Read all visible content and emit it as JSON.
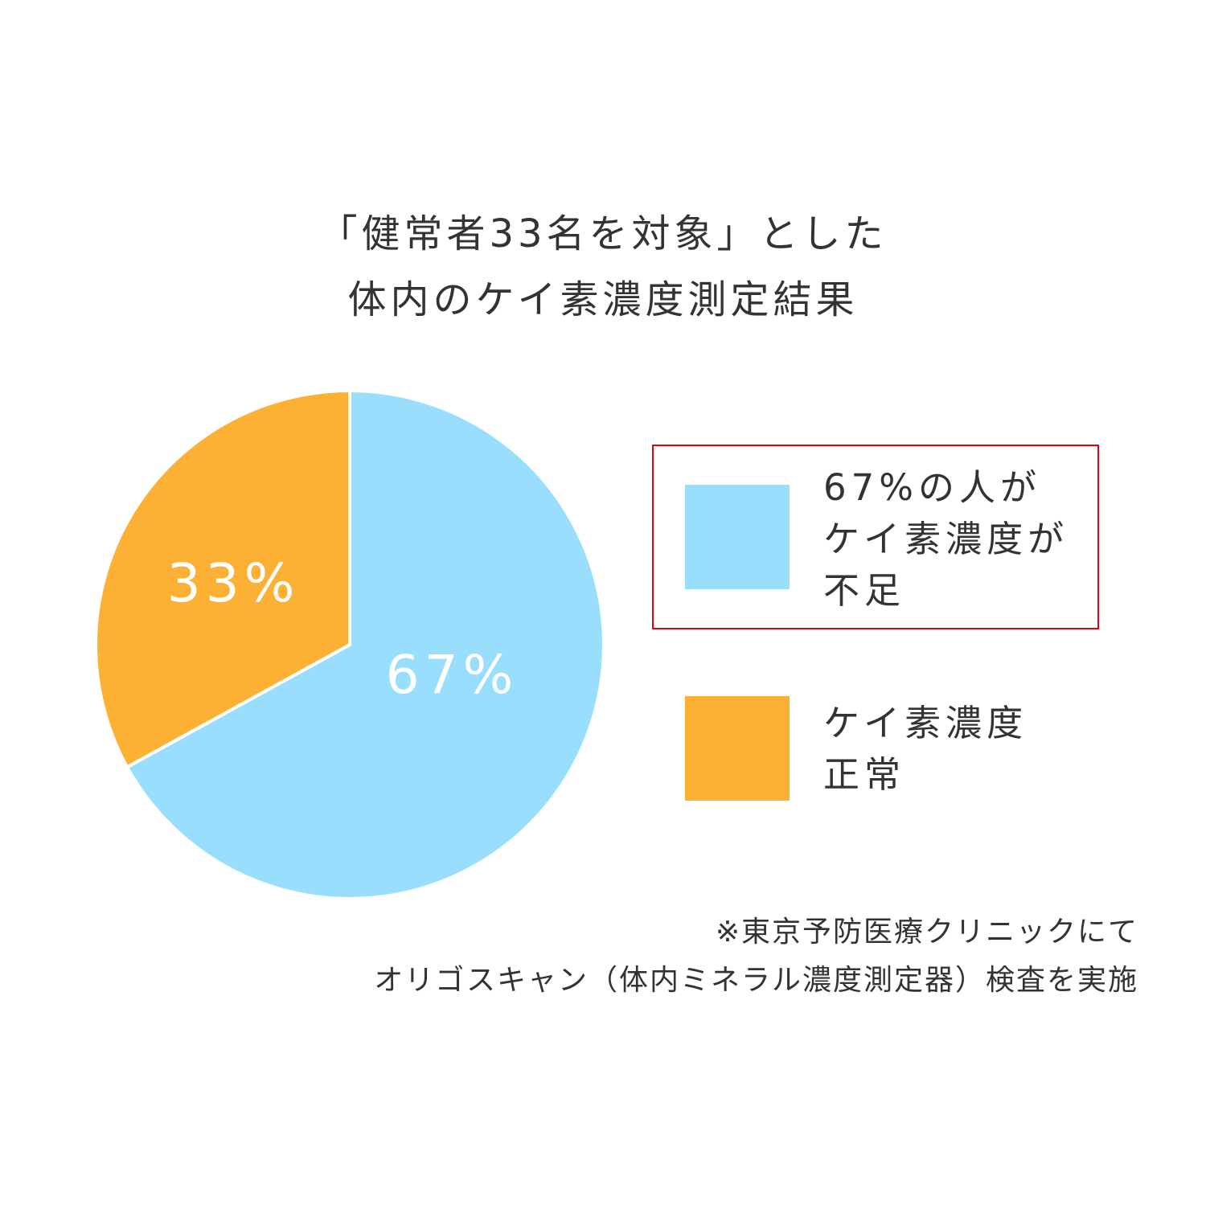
{
  "title": {
    "line1": "「健常者33名を対象」とした",
    "line2": "体内のケイ素濃度測定結果"
  },
  "chart_data": {
    "type": "pie",
    "slices": [
      {
        "label": "67%",
        "value": 67,
        "color": "#99dffd"
      },
      {
        "label": "33%",
        "value": 33,
        "color": "#fcb034"
      }
    ],
    "start": "12 o'clock, clockwise",
    "label_color": "#ffffff",
    "legend": [
      {
        "lines": [
          "67%の人が",
          "ケイ素濃度が",
          "不足"
        ],
        "color": "#99dffd",
        "highlighted": true
      },
      {
        "lines": [
          "ケイ素濃度",
          "正常"
        ],
        "color": "#fcb034",
        "highlighted": false
      }
    ],
    "legend_position": "right",
    "highlight_border_color": "#e50012"
  },
  "note": {
    "line1": "※東京予防医療クリニックにて",
    "line2": "オリゴスキャン（体内ミネラル濃度測定器）検査を実施"
  }
}
